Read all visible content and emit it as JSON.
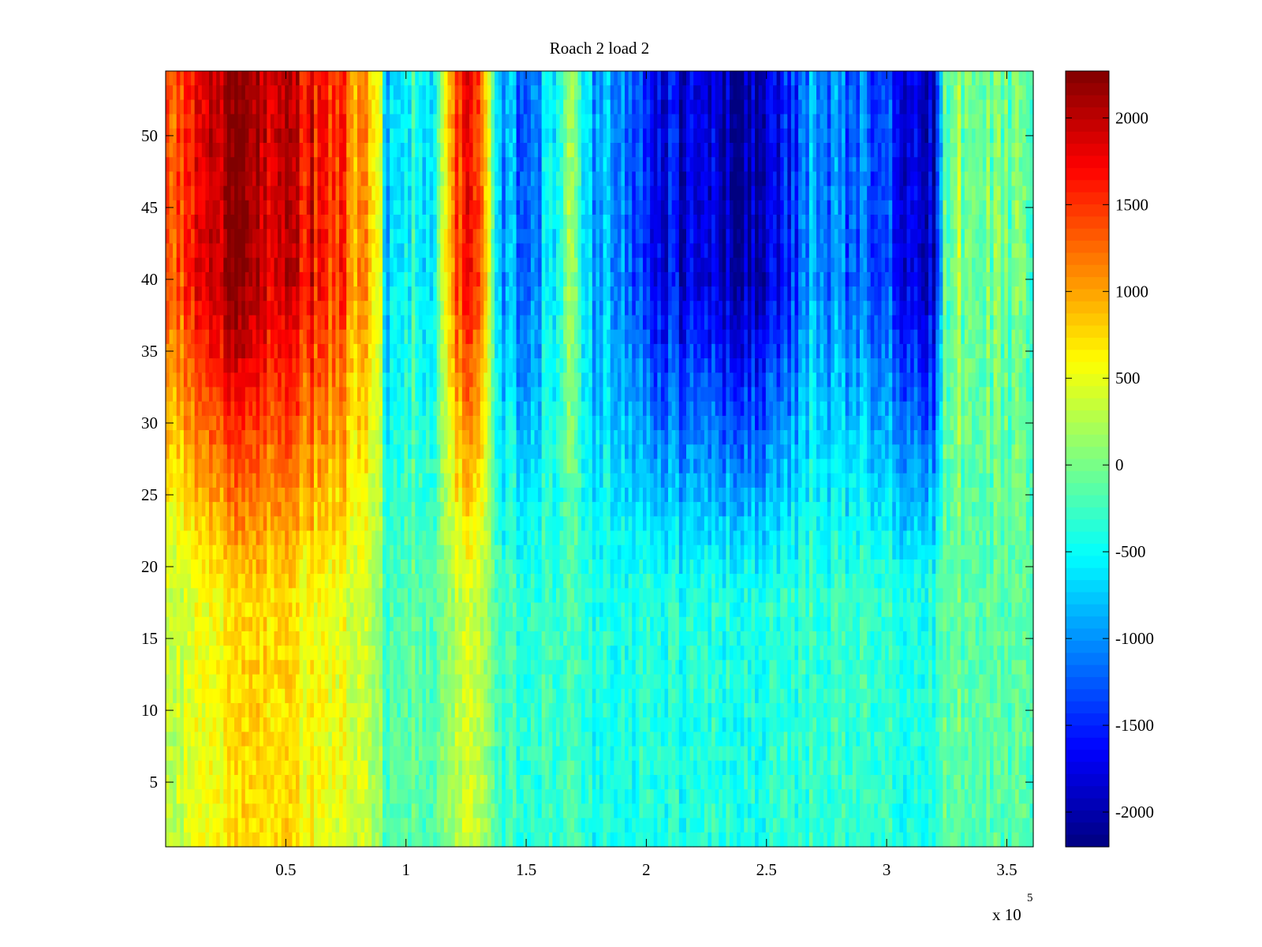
{
  "chart_data": {
    "type": "heatmap",
    "title": "Roach 2 load 2",
    "xlabel": "",
    "ylabel": "",
    "x_multiplier_label": "x 10",
    "x_multiplier_exponent": "5",
    "xlim": [
      0,
      361000
    ],
    "ylim": [
      0.5,
      54.5
    ],
    "x_ticks": [
      0.5,
      1,
      1.5,
      2,
      2.5,
      3,
      3.5
    ],
    "x_tick_labels": [
      "0.5",
      "1",
      "1.5",
      "2",
      "2.5",
      "3",
      "3.5"
    ],
    "y_ticks": [
      5,
      10,
      15,
      20,
      25,
      30,
      35,
      40,
      45,
      50
    ],
    "y_tick_labels": [
      "5",
      "10",
      "15",
      "20",
      "25",
      "30",
      "35",
      "40",
      "45",
      "50"
    ],
    "rows": 54,
    "colormap": "jet",
    "clim": [
      -2200,
      2270
    ],
    "colorbar": {
      "ticks": [
        2000,
        1500,
        1000,
        500,
        0,
        -500,
        -1000,
        -1500,
        -2000
      ],
      "tick_labels": [
        "2000",
        "1500",
        "1000",
        "500",
        "0",
        "-500",
        "-1000",
        "-1500",
        "-2000"
      ],
      "placement": "right"
    },
    "column_profile": {
      "description_x_in_1e5_units": true,
      "x": [
        0.0,
        0.1,
        0.2,
        0.3,
        0.4,
        0.5,
        0.6,
        0.7,
        0.8,
        0.88,
        0.92,
        1.0,
        1.1,
        1.15,
        1.2,
        1.3,
        1.38,
        1.5,
        1.6,
        1.68,
        1.75,
        1.85,
        1.95,
        2.0,
        2.2,
        2.4,
        2.55,
        2.7,
        2.8,
        3.0,
        3.1,
        3.2,
        3.25,
        3.4,
        3.61
      ],
      "top_value": [
        1300,
        1500,
        1800,
        2200,
        2000,
        1900,
        1800,
        1500,
        1100,
        700,
        -700,
        -400,
        -700,
        200,
        1500,
        1500,
        -900,
        -1100,
        -700,
        0,
        -800,
        -900,
        -1200,
        -1700,
        -1800,
        -2000,
        -1800,
        -900,
        -1100,
        -1300,
        -1700,
        -1900,
        0,
        100,
        0
      ],
      "bottom_value": [
        300,
        400,
        500,
        700,
        800,
        700,
        600,
        500,
        400,
        200,
        -200,
        -100,
        -200,
        0,
        300,
        300,
        -300,
        -300,
        -300,
        -300,
        -400,
        -400,
        -400,
        -400,
        -400,
        -400,
        -400,
        -300,
        -300,
        -300,
        -400,
        -400,
        -100,
        -100,
        -100
      ]
    }
  }
}
